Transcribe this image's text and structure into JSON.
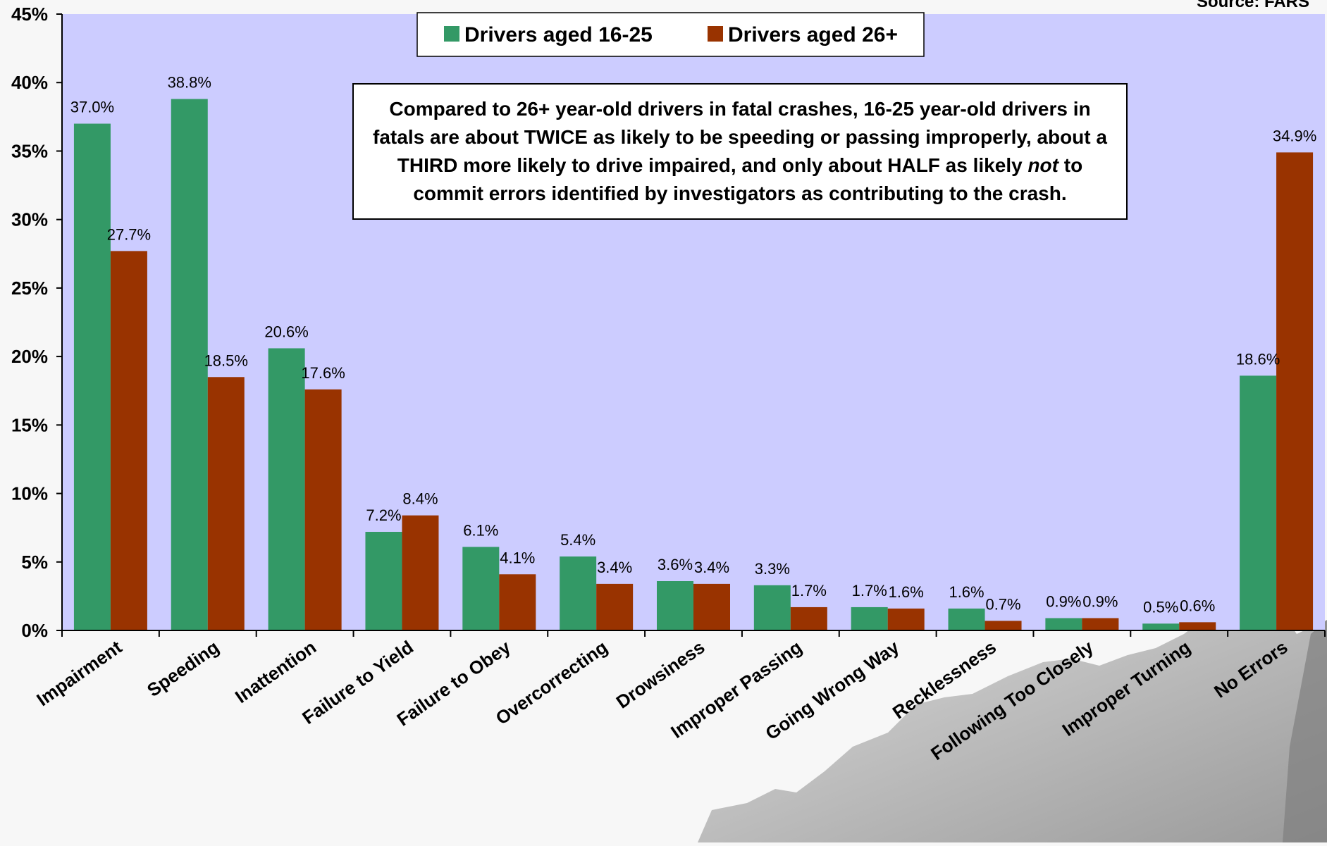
{
  "source": "Source: FARS",
  "note": {
    "part1": "Compared to 26+ year-old drivers in fatal crashes, 16-25 year-old drivers in fatals are about TWICE as likely to be speeding or passing improperly,  about a THIRD more likely to drive impaired, and only about HALF as likely ",
    "emphasis": "not",
    "part2": " to commit errors identified by investigators as contributing to the crash."
  },
  "chart_data": {
    "type": "bar",
    "categories": [
      "Impairment",
      "Speeding",
      "Inattention",
      "Failure to Yield",
      "Failure to Obey",
      "Overcorrecting",
      "Drowsiness",
      "Improper Passing",
      "Going Wrong Way",
      "Recklessness",
      "Following Too Closely",
      "Improper Turning",
      "No Errors"
    ],
    "series": [
      {
        "name": "Drivers aged 16-25",
        "color": "#339966",
        "values": [
          37.0,
          38.8,
          20.6,
          7.2,
          6.1,
          5.4,
          3.6,
          3.3,
          1.7,
          1.6,
          0.9,
          0.5,
          18.6
        ],
        "labels": [
          "37.0%",
          "38.8%",
          "20.6%",
          "7.2%",
          "6.1%",
          "5.4%",
          "3.6%",
          "3.3%",
          "1.7%",
          "1.6%",
          "0.9%",
          "0.5%",
          "18.6%"
        ]
      },
      {
        "name": "Drivers aged 26+",
        "color": "#993300",
        "values": [
          27.7,
          18.5,
          17.6,
          8.4,
          4.1,
          3.4,
          3.4,
          1.7,
          1.6,
          0.7,
          0.9,
          0.6,
          34.9
        ],
        "labels": [
          "27.7%",
          "18.5%",
          "17.6%",
          "8.4%",
          "4.1%",
          "3.4%",
          "3.4%",
          "1.7%",
          "1.6%",
          "0.7%",
          "0.9%",
          "0.6%",
          "34.9%"
        ]
      }
    ],
    "yticks": [
      "0%",
      "5%",
      "10%",
      "15%",
      "20%",
      "25%",
      "30%",
      "35%",
      "40%",
      "45%"
    ],
    "ylim": [
      0,
      45
    ],
    "title": "",
    "xlabel": "",
    "ylabel": "",
    "plot_background": "#ccccff",
    "grid": false,
    "legend_position": "top-center"
  }
}
